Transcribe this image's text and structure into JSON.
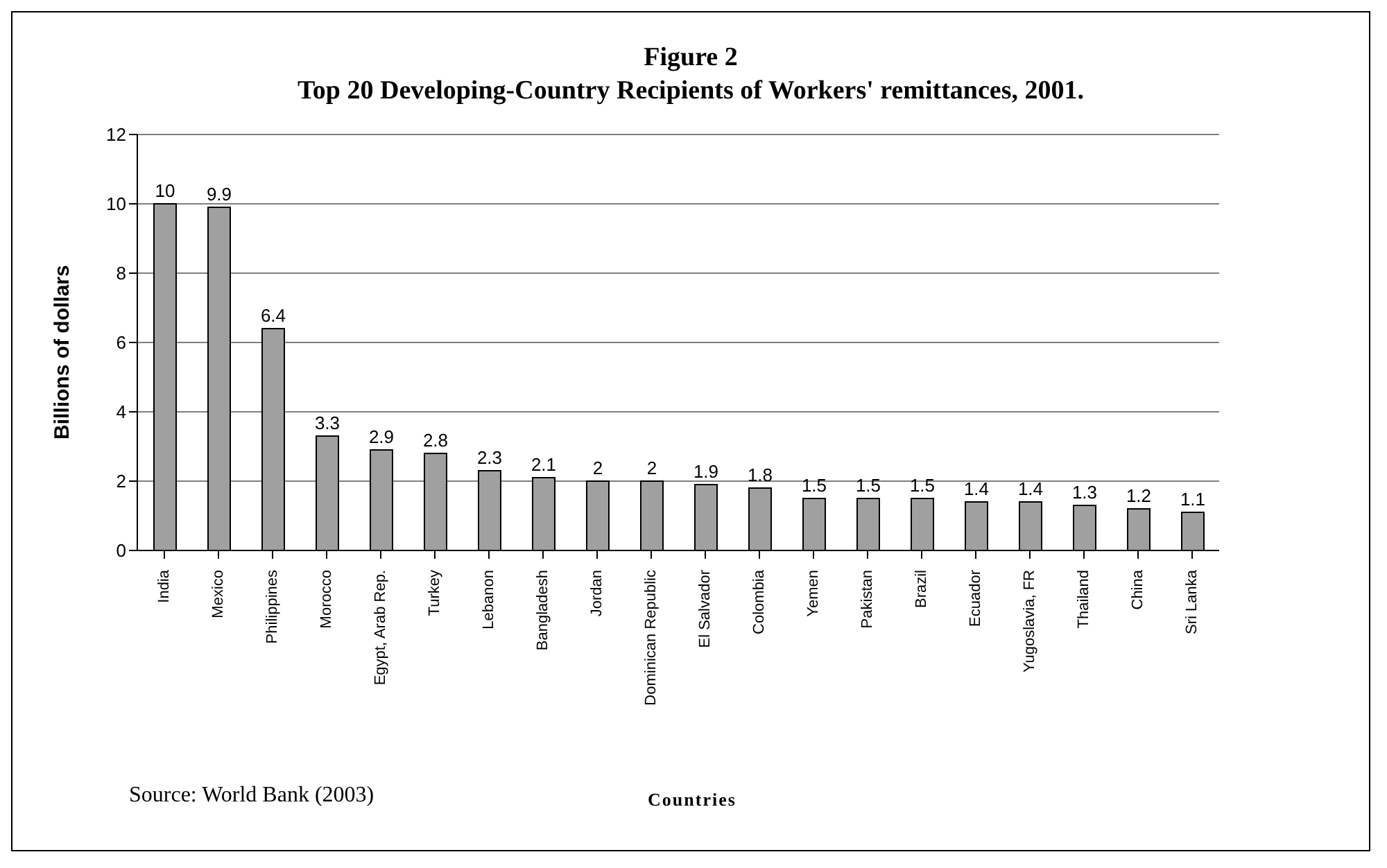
{
  "chart_data": {
    "type": "bar",
    "title": "Figure 2",
    "subtitle": "Top 20 Developing-Country Recipients of Workers' remittances, 2001.",
    "xlabel": "Countries",
    "ylabel": "Billions of dollars",
    "categories": [
      "India",
      "Mexico",
      "Philippines",
      "Morocco",
      "Egypt, Arab Rep.",
      "Turkey",
      "Lebanon",
      "Bangladesh",
      "Jordan",
      "Dominican Republic",
      "El Salvador",
      "Colombia",
      "Yemen",
      "Pakistan",
      "Brazil",
      "Ecuador",
      "Yugoslavia, FR",
      "Thailand",
      "China",
      "Sri Lanka"
    ],
    "values": [
      10,
      9.9,
      6.4,
      3.3,
      2.9,
      2.8,
      2.3,
      2.1,
      2,
      2,
      1.9,
      1.8,
      1.5,
      1.5,
      1.5,
      1.4,
      1.4,
      1.3,
      1.2,
      1.1
    ],
    "color": "#a0a0a0",
    "ylim": [
      0,
      12
    ],
    "yticks": [
      0,
      2,
      4,
      6,
      8,
      10,
      12
    ],
    "grid": "y",
    "data_labels": true,
    "legend": false,
    "annotations": [
      "Source: World Bank (2003)"
    ]
  }
}
